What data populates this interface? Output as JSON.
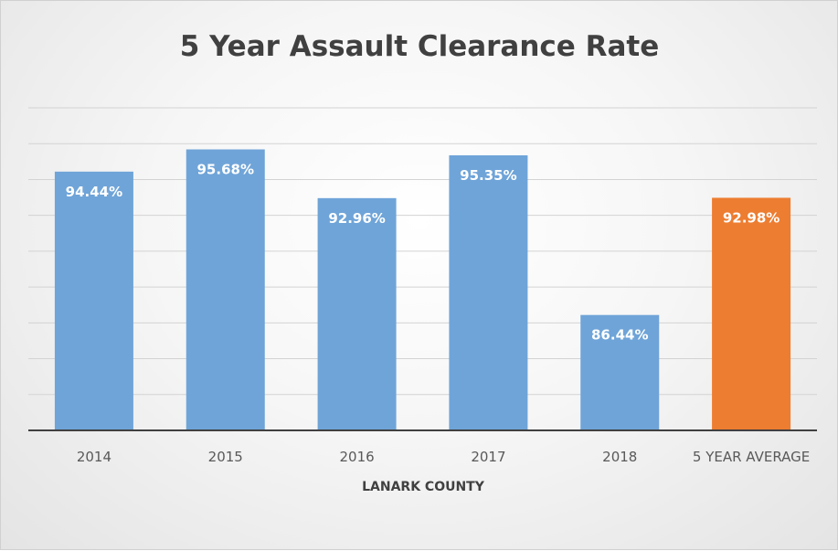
{
  "chart_data": {
    "type": "bar",
    "title": "5 Year Assault Clearance Rate",
    "xlabel": "LANARK COUNTY",
    "ylabel": "",
    "categories": [
      "2014",
      "2015",
      "2016",
      "2017",
      "2018",
      "5 YEAR AVERAGE"
    ],
    "values": [
      94.44,
      95.68,
      92.96,
      95.35,
      86.44,
      92.98
    ],
    "data_labels": [
      "94.44%",
      "95.68%",
      "92.96%",
      "95.35%",
      "86.44%",
      "92.98%"
    ],
    "ylim": [
      80,
      98
    ],
    "gridlines": true,
    "legend": "none",
    "colors": {
      "default_bar": "#6fa4d8",
      "highlight_bar": "#ed7d31",
      "gridline": "#d3d3d3",
      "axis": "#404040"
    },
    "highlight_index": 5
  }
}
